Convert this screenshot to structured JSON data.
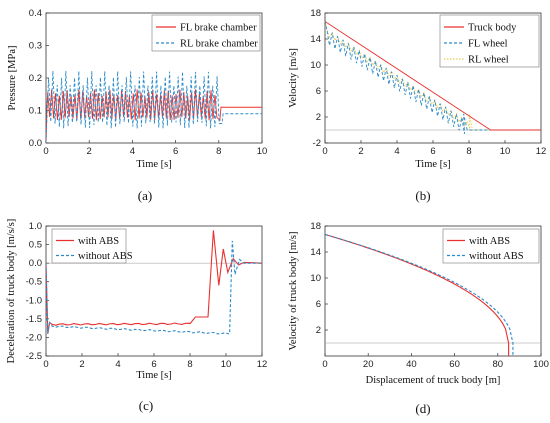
{
  "chart_data": [
    {
      "panel": "(a)",
      "type": "line",
      "xlabel": "Time [s]",
      "ylabel": "Pressure [MPa]",
      "xlim": [
        0,
        10
      ],
      "ylim": [
        0,
        0.4
      ],
      "xticks": [
        "0",
        "2",
        "4",
        "6",
        "8",
        "10"
      ],
      "yticks": [
        "0.0",
        "0.1",
        "0.2",
        "0.3",
        "0.4"
      ],
      "legend_position": "top-right",
      "series": [
        {
          "name": "FL brake chamber",
          "color": "#e8312f",
          "style": "solid",
          "x": [
            0,
            0.05,
            0.1,
            0.15,
            0.25,
            0.3,
            0.35,
            0.4,
            7.9,
            8.0,
            8.1,
            10
          ],
          "y": [
            0,
            0.12,
            0.16,
            0.07,
            0.16,
            0.07,
            0.16,
            0.07,
            0.16,
            0.07,
            0.11,
            0.11
          ]
        },
        {
          "name": "RL brake chamber",
          "color": "#2a8bc9",
          "style": "dashed",
          "x": [
            0,
            0.05,
            0.1,
            0.18,
            0.25,
            0.35,
            0.45,
            8.0,
            8.1,
            8.2,
            10
          ],
          "y": [
            0,
            0.08,
            0.23,
            0.05,
            0.22,
            0.06,
            0.22,
            0.22,
            0.06,
            0.09,
            0.09
          ]
        }
      ]
    },
    {
      "panel": "(b)",
      "type": "line",
      "xlabel": "Time [s]",
      "ylabel": "Velocity [m/s]",
      "xlim": [
        0,
        12
      ],
      "ylim": [
        -2,
        18
      ],
      "xticks": [
        "0",
        "2",
        "4",
        "6",
        "8",
        "10",
        "12"
      ],
      "yticks": [
        "-2",
        "2",
        "6",
        "10",
        "14",
        "18"
      ],
      "legend_position": "top-right",
      "series": [
        {
          "name": "Truck body",
          "color": "#e8312f",
          "style": "solid",
          "x": [
            0,
            9.2,
            12
          ],
          "y": [
            16.7,
            0,
            0
          ]
        },
        {
          "name": "FL wheel",
          "color": "#2a8bc9",
          "style": "dashed",
          "x": [
            0,
            0.1,
            0.3,
            7.6,
            7.8,
            8.0,
            12
          ],
          "y": [
            16.7,
            10,
            13,
            1.5,
            2.8,
            0,
            0
          ]
        },
        {
          "name": "RL wheel",
          "color": "#e6c94f",
          "style": "dotted",
          "x": [
            0,
            0.1,
            0.3,
            7.9,
            8.1,
            12
          ],
          "y": [
            16.7,
            12,
            12.5,
            2.5,
            0,
            0
          ]
        }
      ]
    },
    {
      "panel": "(c)",
      "type": "line",
      "xlabel": "Time [s]",
      "ylabel": "Deceleration of truck body [m/s/s]",
      "xlim": [
        0,
        12
      ],
      "ylim": [
        -2.5,
        1.0
      ],
      "xticks": [
        "0",
        "2",
        "4",
        "6",
        "8",
        "10",
        "12"
      ],
      "yticks": [
        "-2.5",
        "-2.0",
        "-1.5",
        "-1.0",
        "-0.5",
        "0.0",
        "0.5",
        "1.0"
      ],
      "legend_position": "top-left",
      "series": [
        {
          "name": "with ABS",
          "color": "#e8312f",
          "style": "solid",
          "x": [
            0,
            0.1,
            0.2,
            0.35,
            8.0,
            8.3,
            9.0,
            9.3,
            9.6,
            9.85,
            10.1,
            10.4,
            10.7,
            11.0,
            12
          ],
          "y": [
            0,
            -1.9,
            -1.6,
            -1.65,
            -1.63,
            -1.45,
            -1.45,
            0.88,
            -0.6,
            0.38,
            -0.25,
            0.12,
            -0.05,
            0.02,
            0
          ]
        },
        {
          "name": "without ABS",
          "color": "#2a8bc9",
          "style": "dashed",
          "x": [
            0,
            0.1,
            0.2,
            0.35,
            10.2,
            10.35,
            10.5,
            10.75,
            11.0,
            12
          ],
          "y": [
            0,
            -1.9,
            -1.6,
            -1.7,
            -1.9,
            0.6,
            -0.3,
            0.1,
            0.0,
            0
          ]
        }
      ]
    },
    {
      "panel": "(d)",
      "type": "line",
      "xlabel": "Displacement of truck body [m]",
      "ylabel": "Velocity of truck body [m/s]",
      "xlim": [
        0,
        100
      ],
      "ylim": [
        -2,
        18
      ],
      "xticks": [
        "0",
        "20",
        "40",
        "60",
        "80",
        "100"
      ],
      "yticks": [
        "2",
        "6",
        "10",
        "14",
        "18"
      ],
      "legend_position": "top-right",
      "series": [
        {
          "name": "with ABS",
          "color": "#e8312f",
          "style": "solid",
          "stop_distance": 85,
          "v0": 16.7
        },
        {
          "name": "without ABS",
          "color": "#2a8bc9",
          "style": "dashed",
          "stop_distance": 87,
          "v0": 16.7
        }
      ]
    }
  ]
}
